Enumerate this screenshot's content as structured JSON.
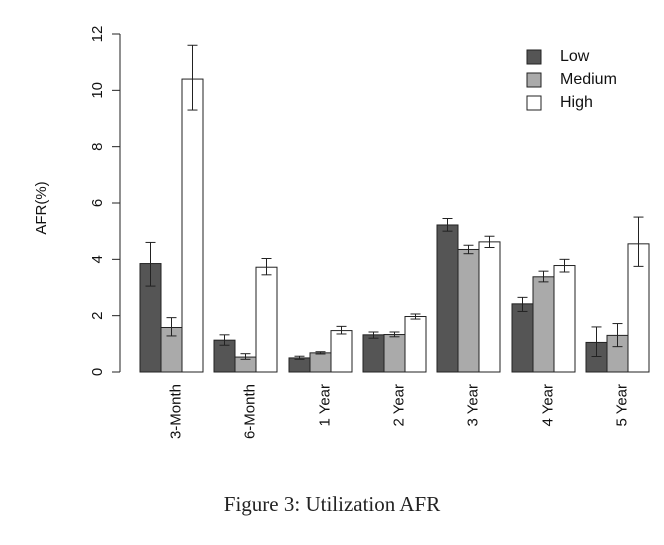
{
  "caption": "Figure 3: Utilization AFR",
  "chart_data": {
    "type": "bar",
    "title": "",
    "xlabel": "",
    "ylabel": "AFR(%)",
    "ylim": [
      0,
      12
    ],
    "yticks": [
      0,
      2,
      4,
      6,
      8,
      10,
      12
    ],
    "grid": false,
    "legend_position": "top-right",
    "categories": [
      "3-Month",
      "6-Month",
      "1 Year",
      "2 Year",
      "3 Year",
      "4 Year",
      "5 Year"
    ],
    "series": [
      {
        "name": "Low",
        "color": "#555555",
        "values": [
          3.85,
          1.13,
          0.5,
          1.32,
          5.22,
          2.42,
          1.05
        ],
        "err_low": [
          3.05,
          0.95,
          0.45,
          1.2,
          5.0,
          2.15,
          0.55
        ],
        "err_high": [
          4.6,
          1.32,
          0.56,
          1.42,
          5.45,
          2.65,
          1.6
        ]
      },
      {
        "name": "Medium",
        "color": "#aaaaaa",
        "values": [
          1.58,
          0.53,
          0.68,
          1.33,
          4.35,
          3.38,
          1.3
        ],
        "err_low": [
          1.28,
          0.45,
          0.64,
          1.25,
          4.2,
          3.2,
          0.9
        ],
        "err_high": [
          1.93,
          0.65,
          0.72,
          1.42,
          4.5,
          3.58,
          1.72
        ]
      },
      {
        "name": "High",
        "color": "#ffffff",
        "values": [
          10.4,
          3.72,
          1.47,
          1.97,
          4.62,
          3.78,
          4.55
        ],
        "err_low": [
          9.3,
          3.45,
          1.35,
          1.88,
          4.42,
          3.55,
          3.75
        ],
        "err_high": [
          11.6,
          4.03,
          1.62,
          2.06,
          4.82,
          4.0,
          5.5
        ]
      }
    ]
  }
}
